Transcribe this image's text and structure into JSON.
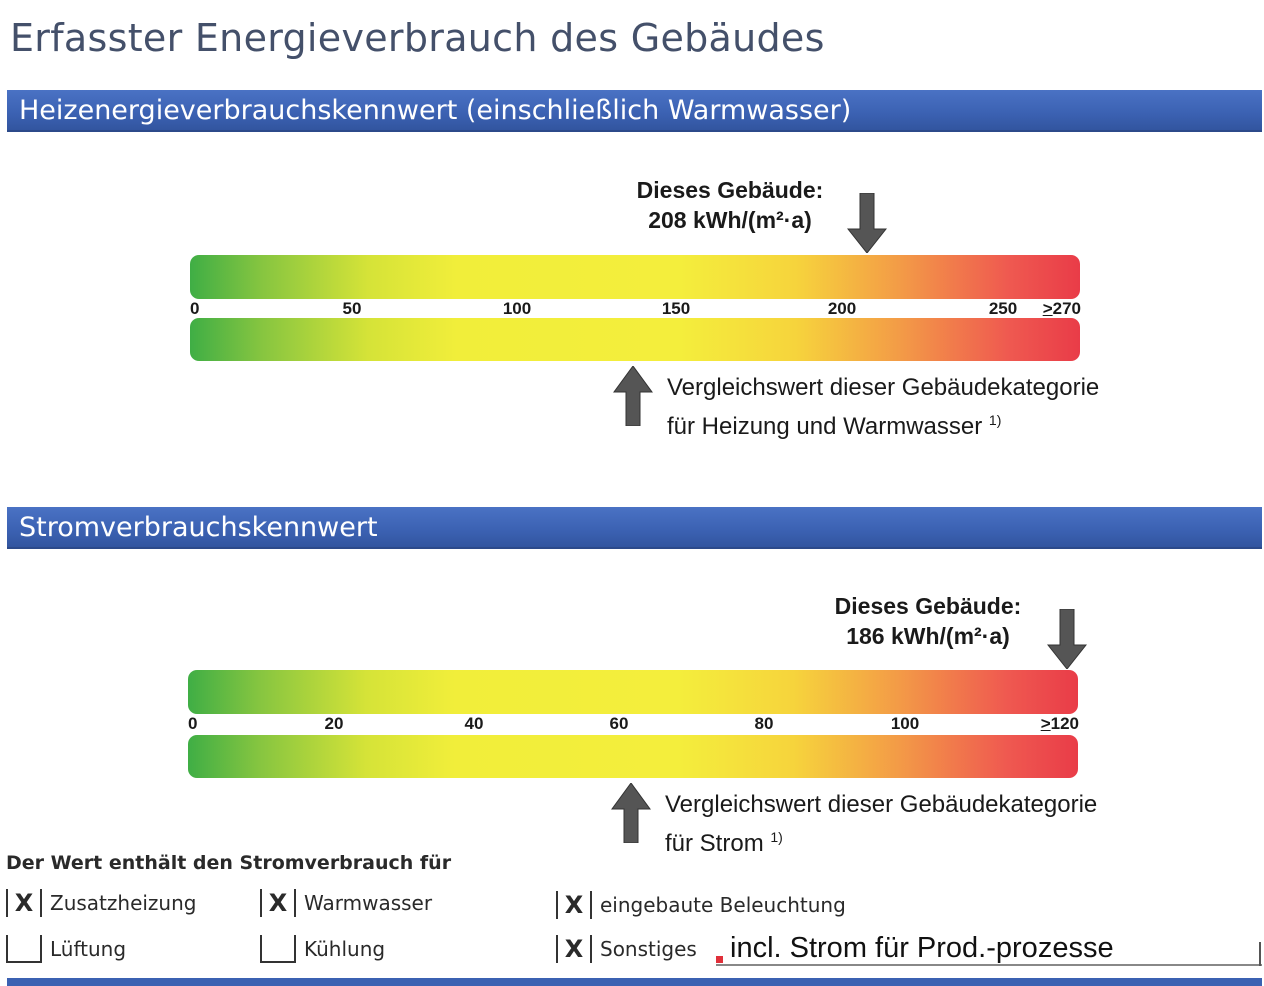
{
  "page_title": "Erfasster Energieverbrauch des Gebäudes",
  "heating": {
    "header": "Heizenergieverbrauchskennwert (einschließlich Warmwasser)",
    "building_label": "Dieses Gebäude:",
    "building_value_text": "208 kWh/(m²·a)",
    "compare_line1": "Vergleichswert dieser Gebäudekategorie",
    "compare_line2": "für Heizung und Warmwasser",
    "footnote": "1)",
    "ticks": [
      "0",
      "50",
      "100",
      "150",
      "200",
      "250",
      "270"
    ]
  },
  "electricity": {
    "header": "Stromverbrauchskennwert",
    "building_label": "Dieses Gebäude:",
    "building_value_text": "186 kWh/(m²·a)",
    "compare_line1": "Vergleichswert dieser Gebäudekategorie",
    "compare_line2": "für Strom",
    "footnote": "1)",
    "ticks": [
      "0",
      "20",
      "40",
      "60",
      "80",
      "100",
      "120"
    ]
  },
  "ge_symbol": ">",
  "includes": {
    "title": "Der Wert enthält den Stromverbrauch für",
    "checked_mark": "X",
    "items": [
      {
        "label": "Zusatzheizung",
        "checked": true
      },
      {
        "label": "Warmwasser",
        "checked": true
      },
      {
        "label": "eingebaute Beleuchtung",
        "checked": true
      },
      {
        "label": "Lüftung",
        "checked": false
      },
      {
        "label": "Kühlung",
        "checked": false
      },
      {
        "label": "Sonstiges",
        "checked": true
      }
    ],
    "other_text": "incl. Strom für Prod.-prozesse"
  },
  "colors": {
    "header_blue": "#3b61b2",
    "title_gray": "#44506a",
    "scale_green": "#3fae45",
    "scale_yellow": "#f1ee3a",
    "scale_red": "#e93c48",
    "arrow_gray": "#555555"
  }
}
